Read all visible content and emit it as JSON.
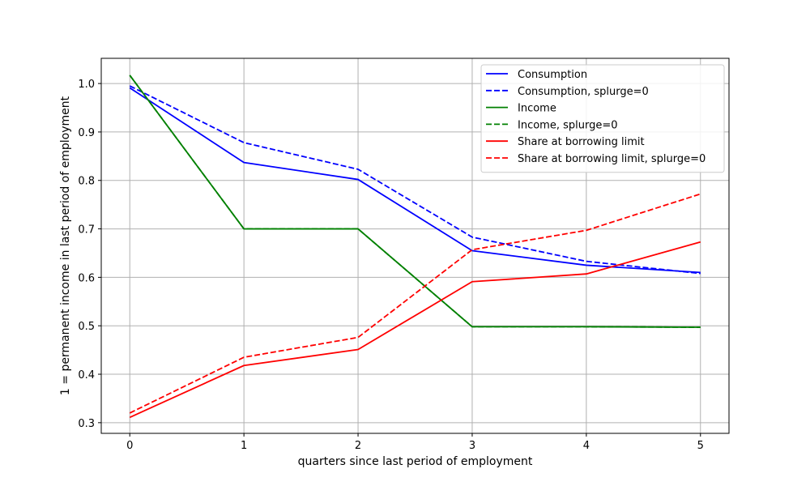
{
  "chart_data": {
    "type": "line",
    "xlabel": "quarters since last period of employment",
    "ylabel": "1 = permanent income in last period of employment",
    "x": [
      0,
      1,
      2,
      3,
      4,
      5
    ],
    "xlim": [
      -0.25,
      5.25
    ],
    "ylim": [
      0.278,
      1.052
    ],
    "xticks": [
      0,
      1,
      2,
      3,
      4,
      5
    ],
    "yticks": [
      0.3,
      0.4,
      0.5,
      0.6,
      0.7,
      0.8,
      0.9,
      1.0
    ],
    "ytick_labels": [
      "0.3",
      "0.4",
      "0.5",
      "0.6",
      "0.7",
      "0.8",
      "0.9",
      "1.0"
    ],
    "grid": true,
    "legend_position": "top-right",
    "series": [
      {
        "name": "Consumption",
        "color": "#0000ff",
        "dashed": false,
        "values": [
          0.991,
          0.837,
          0.802,
          0.655,
          0.625,
          0.61
        ]
      },
      {
        "name": "Consumption, splurge=0",
        "color": "#0000ff",
        "dashed": true,
        "values": [
          0.995,
          0.878,
          0.823,
          0.683,
          0.633,
          0.608
        ]
      },
      {
        "name": "Income",
        "color": "#008000",
        "dashed": false,
        "values": [
          1.017,
          0.7,
          0.7,
          0.498,
          0.498,
          0.497
        ]
      },
      {
        "name": "Income, splurge=0",
        "color": "#008000",
        "dashed": true,
        "values": [
          1.017,
          0.7,
          0.7,
          0.498,
          0.498,
          0.497
        ]
      },
      {
        "name": "Share at borrowing limit",
        "color": "#ff0000",
        "dashed": false,
        "values": [
          0.311,
          0.418,
          0.451,
          0.591,
          0.607,
          0.673
        ]
      },
      {
        "name": "Share at borrowing limit, splurge=0",
        "color": "#ff0000",
        "dashed": true,
        "values": [
          0.32,
          0.435,
          0.476,
          0.657,
          0.697,
          0.772
        ]
      }
    ]
  }
}
